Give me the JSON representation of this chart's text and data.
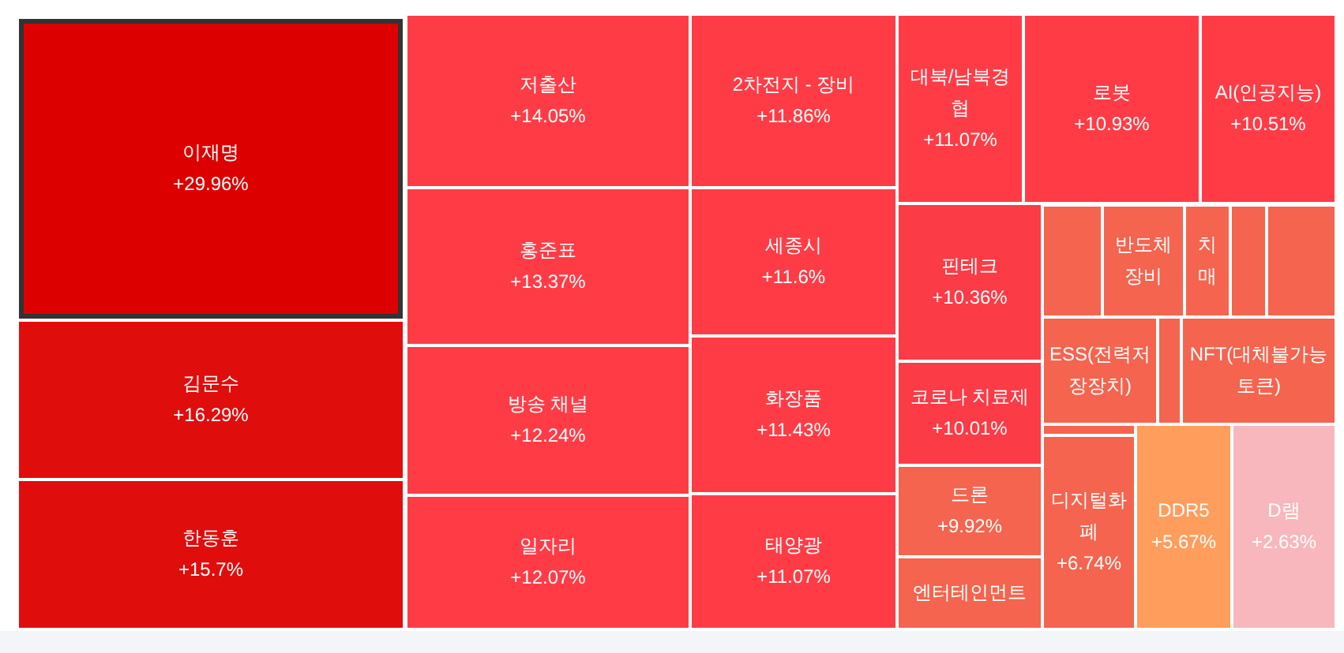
{
  "chart_data": {
    "type": "other",
    "categories": [
      "이재명",
      "김문수",
      "한동훈",
      "저출산",
      "홍준표",
      "방송 채널",
      "일자리",
      "2차전지 - 장비",
      "세종시",
      "화장품",
      "태양광",
      "대북/남북경협",
      "로봇",
      "AI(인공지능)",
      "핀테크",
      "코로나 치료제",
      "드론",
      "엔터테인먼트",
      null,
      "반도체 장비",
      "치매",
      null,
      null,
      "ESS(전력저장장치)",
      null,
      "NFT(대체불가능토큰)",
      null,
      "디지털화폐",
      "DDR5",
      "D램"
    ],
    "values": [
      29.96,
      16.29,
      15.7,
      14.05,
      13.37,
      12.24,
      12.07,
      11.86,
      11.6,
      11.43,
      11.07,
      11.07,
      10.93,
      10.51,
      10.36,
      10.01,
      9.92,
      null,
      null,
      null,
      null,
      null,
      null,
      null,
      null,
      null,
      null,
      6.74,
      5.67,
      2.63
    ],
    "value_labels": [
      "+29.96%",
      "+16.29%",
      "+15.7%",
      "+14.05%",
      "+13.37%",
      "+12.24%",
      "+12.07%",
      "+11.86%",
      "+11.6%",
      "+11.43%",
      "+11.07%",
      "+11.07%",
      "+10.93%",
      "+10.51%",
      "+10.36%",
      "+10.01%",
      "+9.92%",
      null,
      null,
      null,
      null,
      null,
      null,
      null,
      null,
      null,
      null,
      "+6.74%",
      "+5.67%",
      "+2.63%"
    ],
    "colors": [
      "#dc0000",
      "#e00d0d",
      "#e00d0d",
      "#ff3c46",
      "#ff3c46",
      "#ff3c46",
      "#ff3c46",
      "#ff3c46",
      "#ff3c46",
      "#ff3c46",
      "#ff3c46",
      "#ff3c46",
      "#ff3c46",
      "#ff3c46",
      "#fb3b45",
      "#fb3b45",
      "#f4644e",
      "#f4644e",
      "#f4644e",
      "#f4644e",
      "#f4644e",
      "#f4644e",
      "#f4644e",
      "#f4644e",
      "#f4644e",
      "#f4644e",
      "#f4644e",
      "#f4644e",
      "#ff9d5c",
      "#f7b7bd"
    ]
  }
}
